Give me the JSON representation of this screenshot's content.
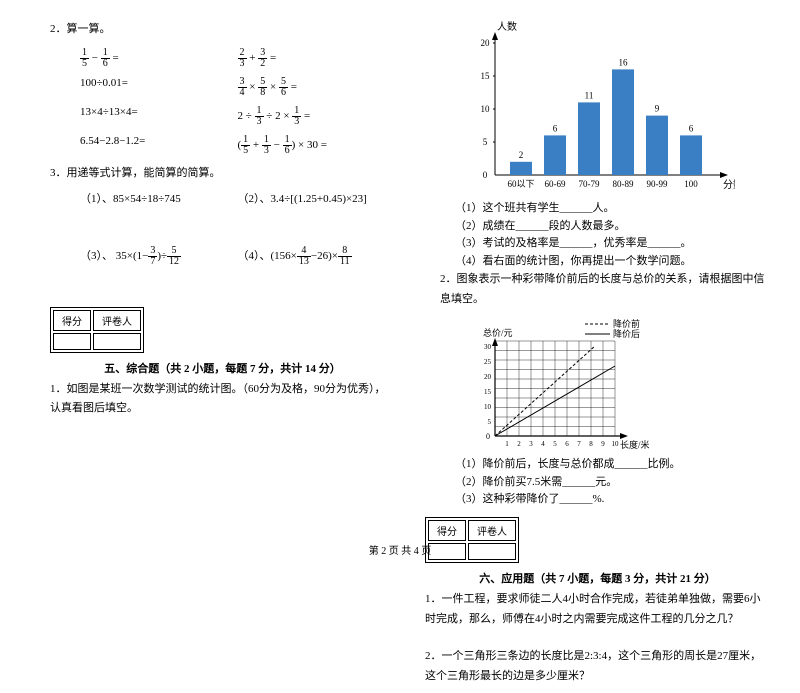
{
  "left": {
    "q2_label": "2．算一算。",
    "eq1a": "⅕-⅙=",
    "eq1b": "⅔+³⁄₂=",
    "eq2a": "100÷0.01=",
    "eq2b_pre": "¾×⅝×⅚=",
    "eq3a": "13×4÷13×4=",
    "eq3b": "2÷⅓÷2×⅓=",
    "eq4a": "6.54−2.8−1.2=",
    "eq4b": "(⅕+⅓−⅙)×30 =",
    "q3_label": "3．用递等式计算，能简算的简算。",
    "q3_1": "（1）、85×54÷18÷745",
    "q3_2": "（2）、3.4÷[(1.25+0.45)×23]",
    "q3_3": "（3）、35×(1−³⁄₇)÷⁵⁄₁₂",
    "q3_4": "（4）、(156×⁴⁄₁₃−26)×⁸⁄₁₁",
    "score_label1": "得分",
    "score_label2": "评卷人",
    "section5": "五、综合题（共 2 小题，每题 7 分，共计 14 分）",
    "q5_1": "1．如图是某班一次数学测试的统计图。（60分为及格，90分为优秀），认真看图后填空。"
  },
  "right": {
    "chart": {
      "ylabel": "人数",
      "xlabel": "分数",
      "categories": [
        "60以下",
        "60-69",
        "70-79",
        "80-89",
        "90-99",
        "100"
      ],
      "values": [
        2,
        6,
        11,
        16,
        9,
        6
      ],
      "ymax": 20,
      "ytick": 5,
      "bar_color": "#3a7fc4",
      "axis_color": "#000"
    },
    "s1": "（1）这个班共有学生______人。",
    "s2": "（2）成绩在______段的人数最多。",
    "s3": "（3）考试的及格率是______，优秀率是______。",
    "s4": "（4）看右面的统计图，你再提出一个数学问题。",
    "q2": "2．图象表示一种彩带降价前后的长度与总价的关系，请根据图中信息填空。",
    "line_chart": {
      "ylabel": "总价/元",
      "xlabel": "长度/米",
      "legend1": "降价前",
      "legend2": "降价后",
      "xmax": 10,
      "ymax": 30,
      "grid_color": "#000",
      "line1_style": "dashed",
      "line2_style": "solid"
    },
    "ls1": "（1）降价前后，长度与总价都成______比例。",
    "ls2": "（2）降价前买7.5米需______元。",
    "ls3": "（3）这种彩带降价了______%.",
    "score_label1": "得分",
    "score_label2": "评卷人",
    "section6": "六、应用题（共 7 小题，每题 3 分，共计 21 分）",
    "q6_1": "1．一件工程，要求师徒二人4小时合作完成，若徒弟单独做，需要6小时完成，那么，师傅在4小时之内需要完成这件工程的几分之几？",
    "q6_2": "2．一个三角形三条边的长度比是2:3:4，这个三角形的周长是27厘米，这个三角形最长的边是多少厘米？"
  },
  "footer": "第 2 页 共 4 页"
}
